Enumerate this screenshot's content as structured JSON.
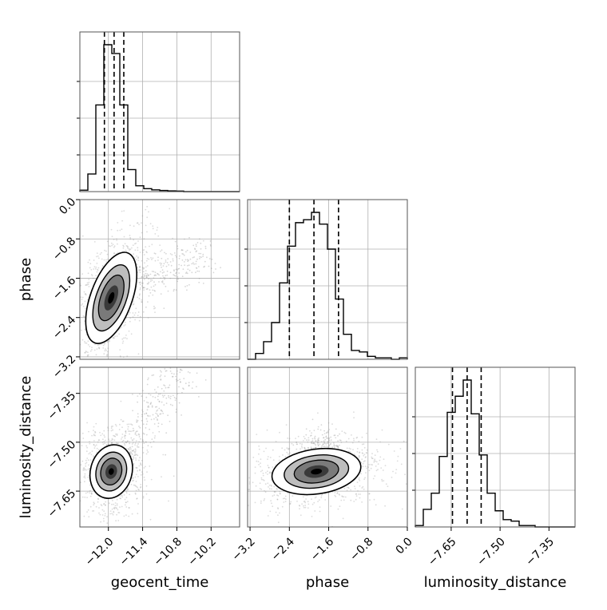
{
  "chart_data": {
    "type": "corner",
    "parameters": [
      "geocent_time",
      "phase",
      "luminosity_distance"
    ],
    "axis_labels": {
      "bottom": [
        "geocent_time",
        "phase",
        "luminosity_distance"
      ],
      "left": [
        "phase",
        "luminosity_distance"
      ]
    },
    "ranges": {
      "geocent_time": [
        -12.5,
        -9.7
      ],
      "phase": [
        -3.25,
        0.0
      ],
      "luminosity_distance": [
        -7.76,
        -7.27
      ]
    },
    "ticks": {
      "geocent_time": [
        -12.0,
        -11.4,
        -10.8,
        -10.2
      ],
      "phase": [
        -3.2,
        -2.4,
        -1.6,
        -0.8,
        0.0
      ],
      "luminosity_distance": [
        -7.65,
        -7.5,
        -7.35
      ]
    },
    "tick_labels": {
      "geocent_time": [
        "−12.0",
        "−11.4",
        "−10.8",
        "−10.2"
      ],
      "phase": [
        "−3.2",
        "−2.4",
        "−1.6",
        "−0.8",
        "0.0"
      ],
      "luminosity_distance": [
        "−7.65",
        "−7.50",
        "−7.35"
      ]
    },
    "histograms": {
      "geocent_time": {
        "bin_edges": [
          -12.5,
          -12.36,
          -12.22,
          -12.08,
          -11.94,
          -11.8,
          -11.66,
          -11.52,
          -11.38,
          -11.24,
          -11.1,
          -10.96,
          -10.82,
          -10.68,
          -10.54,
          -10.4,
          -10.26,
          -10.12,
          -9.98,
          -9.84,
          -9.7
        ],
        "counts": [
          0.01,
          0.12,
          0.59,
          1.0,
          0.94,
          0.59,
          0.15,
          0.04,
          0.02,
          0.012,
          0.008,
          0.005,
          0.004,
          0.0,
          0.0,
          0.0,
          0.0,
          0.0,
          0.0,
          0.0
        ],
        "quantiles": [
          -12.07,
          -11.9,
          -11.73
        ]
      },
      "phase": {
        "bin_edges": [
          -3.25,
          -3.0875,
          -2.925,
          -2.7625,
          -2.6,
          -2.4375,
          -2.275,
          -2.1125,
          -1.95,
          -1.7875,
          -1.625,
          -1.4625,
          -1.3,
          -1.1375,
          -0.975,
          -0.8125,
          -0.65,
          -0.4875,
          -0.325,
          -0.1625,
          0.0
        ],
        "counts": [
          0.0,
          0.04,
          0.12,
          0.25,
          0.52,
          0.77,
          0.93,
          0.95,
          1.0,
          0.92,
          0.75,
          0.41,
          0.17,
          0.06,
          0.05,
          0.02,
          0.01,
          0.01,
          0.0,
          0.01
        ],
        "quantiles": [
          -2.4,
          -1.9,
          -1.4
        ]
      },
      "luminosity_distance": {
        "bin_edges": [
          -7.76,
          -7.7355,
          -7.711,
          -7.6865,
          -7.662,
          -7.6375,
          -7.613,
          -7.5885,
          -7.564,
          -7.5395,
          -7.515,
          -7.4905,
          -7.466,
          -7.4415,
          -7.417,
          -7.3925,
          -7.368,
          -7.3435,
          -7.319,
          -7.2945,
          -7.27
        ],
        "counts": [
          0.01,
          0.12,
          0.23,
          0.48,
          0.78,
          0.89,
          1.0,
          0.77,
          0.49,
          0.23,
          0.11,
          0.05,
          0.04,
          0.01,
          0.01,
          0.0,
          0.0,
          0.0,
          0.0,
          0.0
        ],
        "quantiles": [
          -7.646,
          -7.601,
          -7.558
        ]
      }
    },
    "joint_panels": [
      {
        "x": "geocent_time",
        "y": "phase",
        "mode": [
          -11.95,
          -2.0
        ],
        "tail": [
          -11.2,
          -1.6
        ]
      },
      {
        "x": "geocent_time",
        "y": "luminosity_distance",
        "mode": [
          -11.95,
          -7.59
        ],
        "tail": [
          -11.4,
          -7.45
        ]
      },
      {
        "x": "phase",
        "y": "luminosity_distance",
        "mode": [
          -1.85,
          -7.59
        ],
        "tail": [
          -1.8,
          -7.55
        ]
      }
    ],
    "grid": true,
    "colors": {
      "hist_line": "#000000",
      "quantile_line": "#000000",
      "grid": "#b0b0b0",
      "scatter": "#9a9a9a",
      "density_dark": "#000000"
    }
  }
}
